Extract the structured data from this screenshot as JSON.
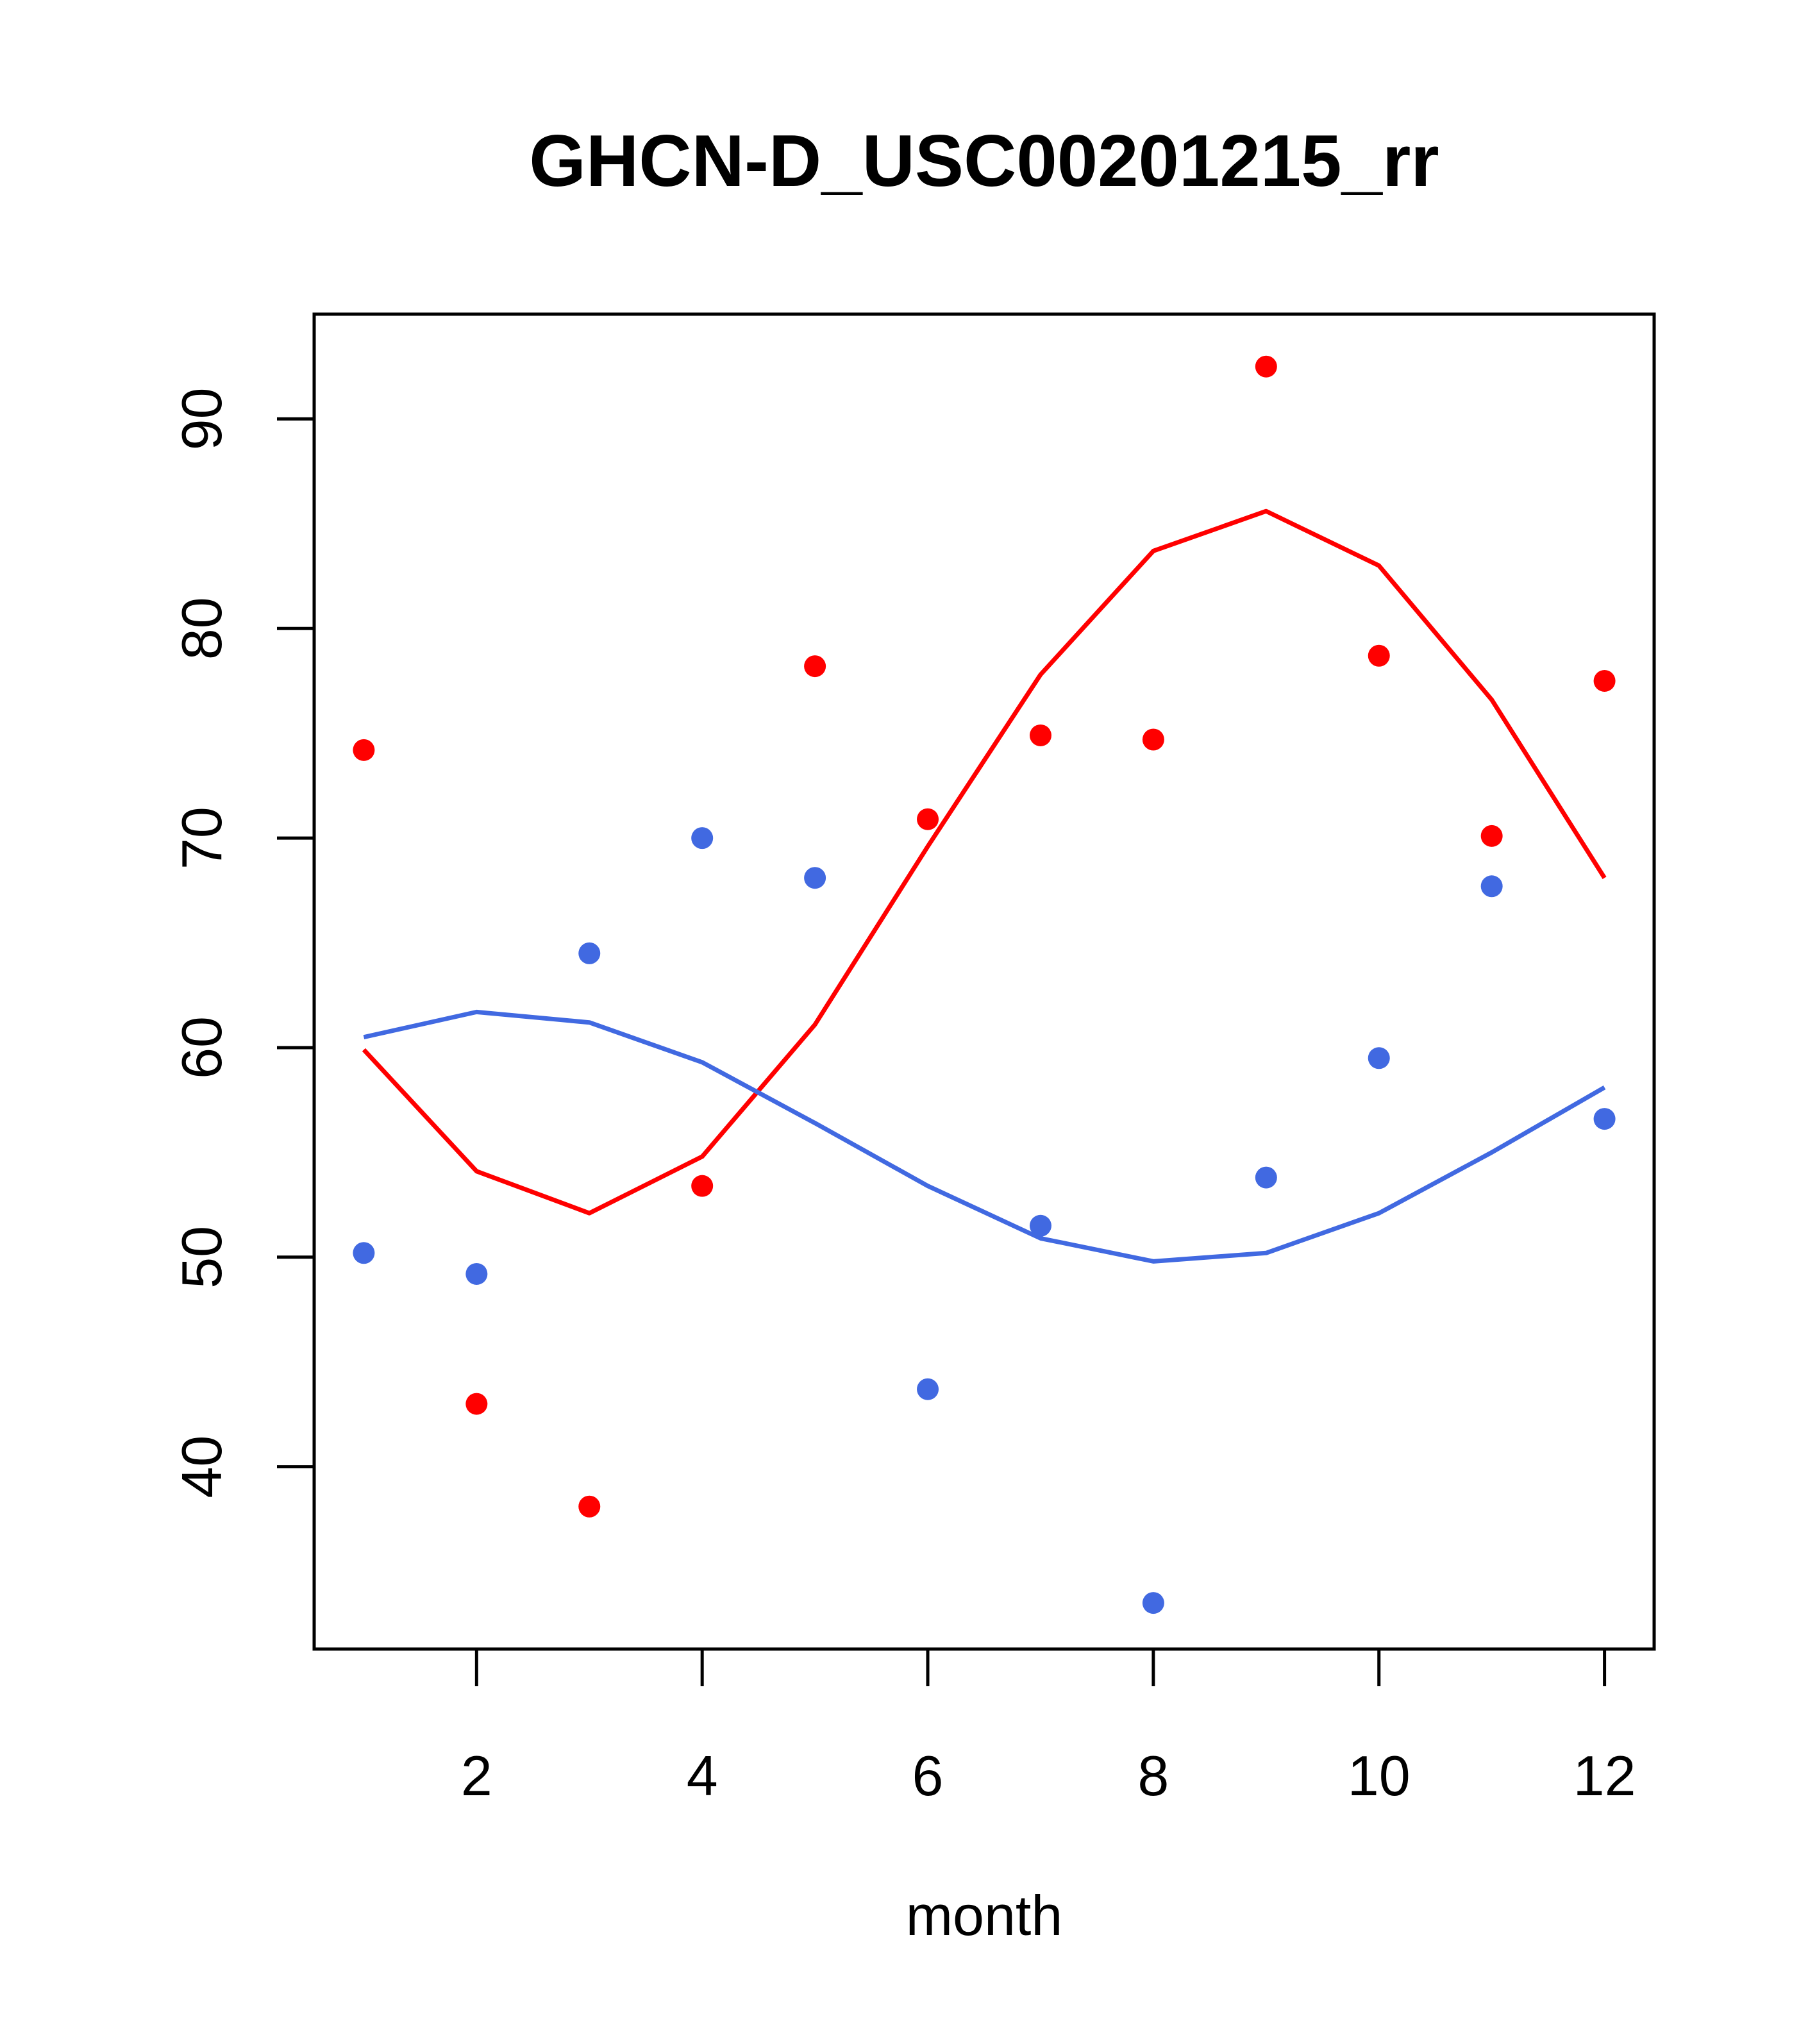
{
  "chart_data": {
    "type": "scatter",
    "title": "GHCN-D_USC00201215_rr",
    "xlabel": "month",
    "ylabel": "",
    "xlim": [
      0.56,
      12.44
    ],
    "ylim": [
      31.3,
      95.0
    ],
    "xticks": [
      "2",
      "4",
      "6",
      "8",
      "10",
      "12"
    ],
    "yticks": [
      "40",
      "50",
      "60",
      "70",
      "80",
      "90"
    ],
    "grid": false,
    "series": [
      {
        "color": "#ff0000",
        "points": {
          "x": [
            1,
            2,
            3,
            4,
            5,
            6,
            7,
            8,
            9,
            10,
            11,
            12
          ],
          "y": [
            74.2,
            43.0,
            38.1,
            53.4,
            78.2,
            70.9,
            74.9,
            74.7,
            92.5,
            78.7,
            70.1,
            77.5
          ]
        },
        "line": {
          "x": [
            1,
            2,
            3,
            4,
            5,
            6,
            7,
            8,
            9,
            10,
            11,
            12
          ],
          "y": [
            59.9,
            54.1,
            52.1,
            54.8,
            61.1,
            69.6,
            77.8,
            83.7,
            85.6,
            83.0,
            76.6,
            68.1
          ]
        }
      },
      {
        "color": "#4169e1",
        "points": {
          "x": [
            1,
            2,
            3,
            4,
            5,
            6,
            7,
            8,
            9,
            10,
            11,
            12
          ],
          "y": [
            50.2,
            49.2,
            64.5,
            70.0,
            68.1,
            43.7,
            51.5,
            33.5,
            53.8,
            59.5,
            67.7,
            56.6
          ]
        },
        "line": {
          "x": [
            1,
            2,
            3,
            4,
            5,
            6,
            7,
            8,
            9,
            10,
            11,
            12
          ],
          "y": [
            60.5,
            61.7,
            61.2,
            59.3,
            56.4,
            53.4,
            50.9,
            49.8,
            50.2,
            52.1,
            55.0,
            58.1
          ]
        }
      }
    ]
  }
}
